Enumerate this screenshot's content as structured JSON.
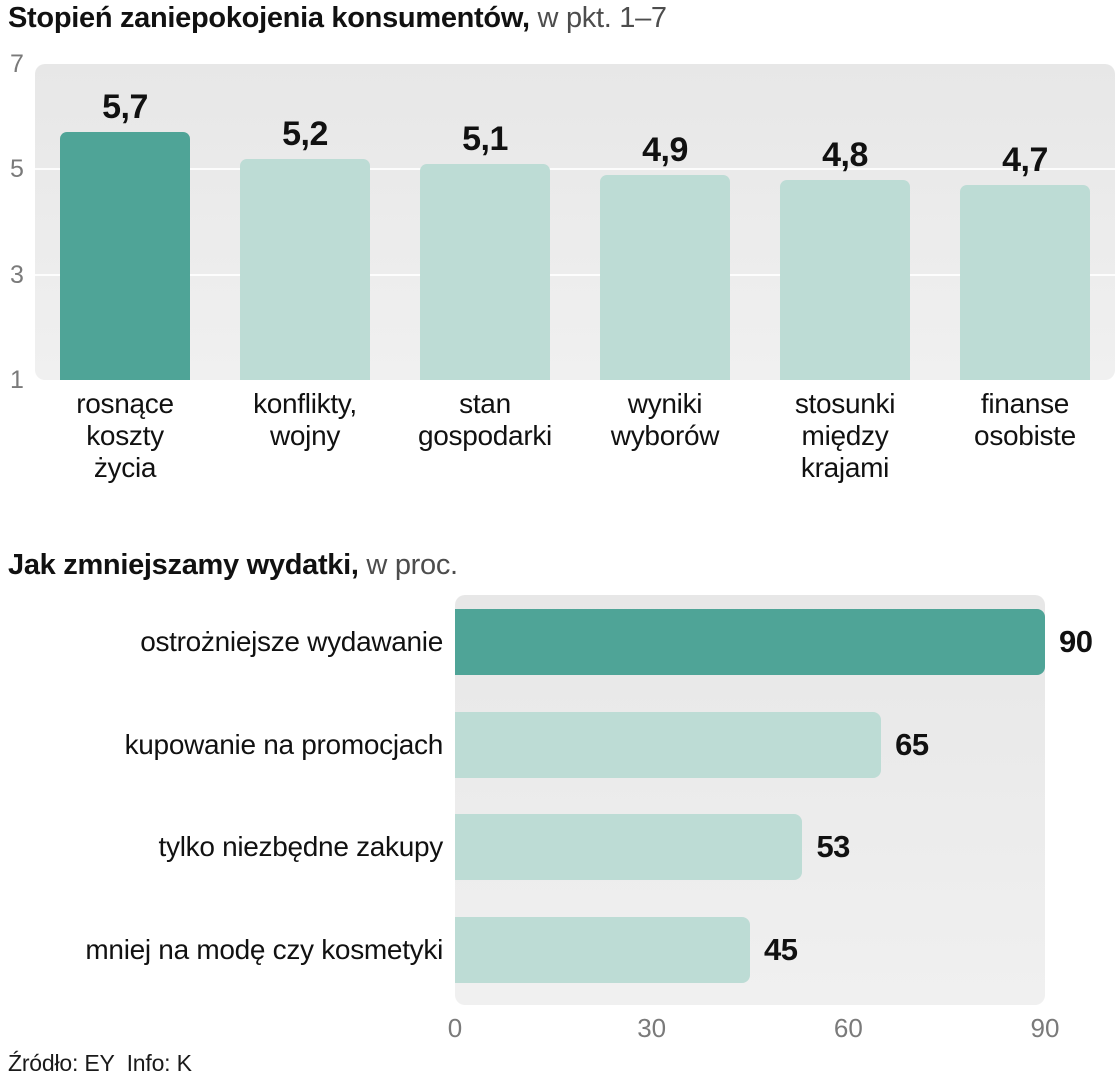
{
  "colors": {
    "accent_dark": "#4fa497",
    "accent_light": "#bddcd5",
    "plot_bg": "#ececec"
  },
  "chart1_title": {
    "bold": "Stopień zaniepokojenia konsumentów,",
    "rest": " w pkt. 1–7"
  },
  "chart2_title": {
    "bold": "Jak zmniejszamy wydatki,",
    "rest": " w proc."
  },
  "footer": "Źródło: EY  Info: K",
  "chart_data": [
    {
      "type": "bar",
      "orientation": "vertical",
      "title": "Stopień zaniepokojenia konsumentów, w pkt. 1–7",
      "categories": [
        "rosnące koszty życia",
        "konflikty, wojny",
        "stan gospodarki",
        "wyniki wyborów",
        "stosunki między krajami",
        "finanse osobiste"
      ],
      "category_lines": [
        [
          "rosnące",
          "koszty",
          "życia"
        ],
        [
          "konflikty,",
          "wojny"
        ],
        [
          "stan",
          "gospodarki"
        ],
        [
          "wyniki",
          "wyborów"
        ],
        [
          "stosunki",
          "między",
          "krajami"
        ],
        [
          "finanse",
          "osobiste"
        ]
      ],
      "values": [
        5.7,
        5.2,
        5.1,
        4.9,
        4.8,
        4.7
      ],
      "value_labels": [
        "5,7",
        "5,2",
        "5,1",
        "4,9",
        "4,8",
        "4,7"
      ],
      "ylim": [
        1,
        7
      ],
      "yticks": [
        7,
        5,
        3,
        1
      ],
      "highlight_index": 0,
      "grid": "light horizontal lines at inner ticks",
      "legend": "none"
    },
    {
      "type": "bar",
      "orientation": "horizontal",
      "title": "Jak zmniejszamy wydatki, w proc.",
      "categories": [
        "ostrożniejsze wydawanie",
        "kupowanie na promocjach",
        "tylko niezbędne zakupy",
        "mniej na modę czy kosmetyki"
      ],
      "values": [
        90,
        65,
        53,
        45
      ],
      "value_labels": [
        "90",
        "65",
        "53",
        "45"
      ],
      "xlim": [
        0,
        90
      ],
      "xticks": [
        0,
        30,
        60,
        90
      ],
      "highlight_index": 0,
      "legend": "none"
    }
  ]
}
